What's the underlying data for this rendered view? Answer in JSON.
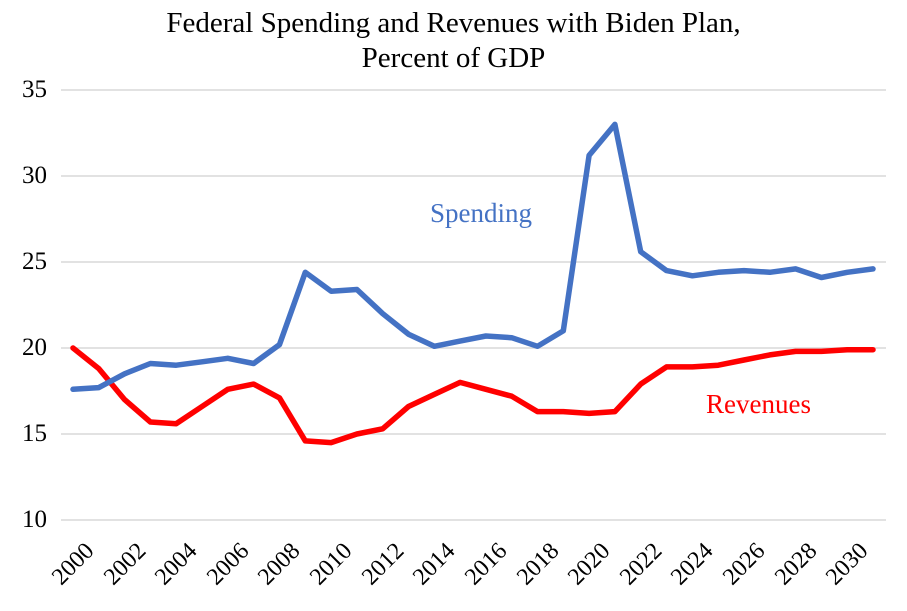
{
  "title": {
    "line1": "Federal Spending and Revenues with Biden Plan,",
    "line2": "Percent of GDP"
  },
  "series_labels": {
    "spending": "Spending",
    "revenues": "Revenues"
  },
  "colors": {
    "spending_blue": "#4472C4",
    "revenues_red": "#FF0000",
    "gridline_gray": "#D9D9D9",
    "text_black": "#000000"
  },
  "chart_data": {
    "type": "line",
    "title": "Federal Spending and Revenues with Biden Plan, Percent of GDP",
    "xlabel": "",
    "ylabel": "",
    "x": [
      2000,
      2001,
      2002,
      2003,
      2004,
      2005,
      2006,
      2007,
      2008,
      2009,
      2010,
      2011,
      2012,
      2013,
      2014,
      2015,
      2016,
      2017,
      2018,
      2019,
      2020,
      2021,
      2022,
      2023,
      2024,
      2025,
      2026,
      2027,
      2028,
      2029,
      2030,
      2031
    ],
    "series": [
      {
        "name": "Spending",
        "color": "#4472C4",
        "values": [
          17.6,
          17.7,
          18.5,
          19.1,
          19.0,
          19.2,
          19.4,
          19.1,
          20.2,
          24.4,
          23.3,
          23.4,
          22.0,
          20.8,
          20.1,
          20.4,
          20.7,
          20.6,
          20.1,
          21.0,
          31.2,
          33.0,
          25.6,
          24.5,
          24.2,
          24.4,
          24.5,
          24.4,
          24.6,
          24.1,
          24.4,
          24.6
        ]
      },
      {
        "name": "Revenues",
        "color": "#FF0000",
        "values": [
          20.0,
          18.8,
          17.0,
          15.7,
          15.6,
          16.6,
          17.6,
          17.9,
          17.1,
          14.6,
          14.5,
          15.0,
          15.3,
          16.6,
          17.3,
          18.0,
          17.6,
          17.2,
          16.3,
          16.3,
          16.2,
          16.3,
          17.9,
          18.9,
          18.9,
          19.0,
          19.3,
          19.6,
          19.8,
          19.8,
          19.9,
          19.9
        ]
      }
    ],
    "ylim": [
      10,
      35
    ],
    "y_ticks": [
      10,
      15,
      20,
      25,
      30,
      35
    ],
    "x_tick_labels": [
      "2000",
      "2002",
      "2004",
      "2006",
      "2008",
      "2010",
      "2012",
      "2014",
      "2016",
      "2018",
      "2020",
      "2022",
      "2024",
      "2026",
      "2028",
      "2030"
    ],
    "grid": "horizontal-only",
    "legend": "inline-series-labels"
  }
}
